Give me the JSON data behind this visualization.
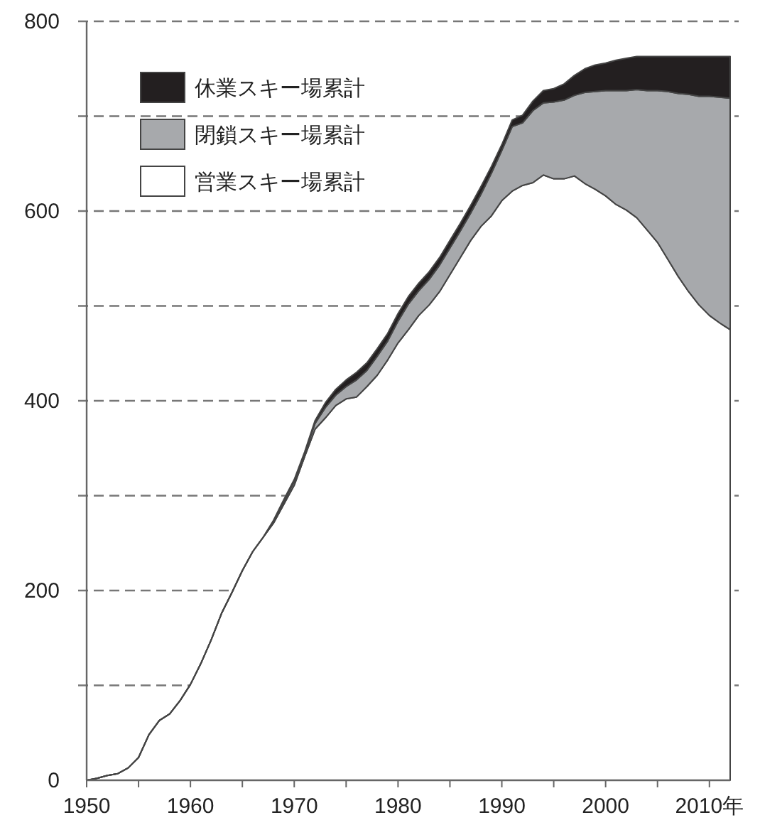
{
  "chart_data": {
    "type": "area",
    "stacked": true,
    "legend": "top left",
    "grid": "y",
    "x": [
      1950,
      1951,
      1952,
      1953,
      1954,
      1955,
      1956,
      1957,
      1958,
      1959,
      1960,
      1961,
      1962,
      1963,
      1964,
      1965,
      1966,
      1967,
      1968,
      1969,
      1970,
      1971,
      1972,
      1973,
      1974,
      1975,
      1976,
      1977,
      1978,
      1979,
      1980,
      1981,
      1982,
      1983,
      1984,
      1985,
      1986,
      1987,
      1988,
      1989,
      1990,
      1991,
      1992,
      1993,
      1994,
      1995,
      1996,
      1997,
      1998,
      1999,
      2000,
      2001,
      2002,
      2003,
      2004,
      2005,
      2006,
      2007,
      2008,
      2009,
      2010,
      2011,
      2012
    ],
    "xlim": [
      1950,
      2012
    ],
    "xticks": [
      1950,
      {
        "value": 1955,
        "label": null
      },
      1960,
      {
        "value": 1965,
        "label": null
      },
      1970,
      {
        "value": 1975,
        "label": null
      },
      1980,
      {
        "value": 1985,
        "label": null
      },
      1990,
      {
        "value": 1995,
        "label": null
      },
      2000,
      {
        "value": 2005,
        "label": null
      },
      {
        "value": 2010,
        "label": "2010年"
      }
    ],
    "ylim": [
      0,
      800
    ],
    "yticks": [
      0,
      {
        "value": 100,
        "label": null
      },
      200,
      {
        "value": 300,
        "label": null
      },
      400,
      {
        "value": 500,
        "label": null
      },
      600,
      {
        "value": 700,
        "label": null
      },
      800
    ],
    "series": [
      {
        "name": "営業スキー場累計",
        "color": "#ffffff",
        "values": [
          0,
          2,
          5,
          7,
          13,
          24,
          48,
          63,
          70,
          84,
          101,
          123,
          148,
          176,
          198,
          221,
          241,
          256,
          271,
          291,
          311,
          341,
          370,
          382,
          395,
          402,
          404,
          415,
          427,
          443,
          461,
          475,
          490,
          501,
          515,
          533,
          551,
          569,
          584,
          595,
          611,
          621,
          627,
          630,
          638,
          634,
          634,
          637,
          629,
          623,
          616,
          607,
          601,
          593,
          580,
          567,
          549,
          531,
          515,
          501,
          490,
          482,
          475
        ]
      },
      {
        "name": "閉鎖スキー場累計",
        "color": "#a7a9ac",
        "values": [
          0,
          0,
          0,
          0,
          0,
          0,
          0,
          0,
          0,
          0,
          0,
          0,
          0,
          0,
          0,
          0,
          0,
          0,
          2,
          3,
          4,
          3,
          6,
          11,
          11,
          13,
          18,
          17,
          20,
          20,
          23,
          27,
          26,
          27,
          28,
          28,
          28,
          29,
          34,
          45,
          53,
          68,
          66,
          76,
          76,
          81,
          83,
          85,
          96,
          103,
          111,
          120,
          126,
          135,
          147,
          160,
          177,
          193,
          208,
          220,
          231,
          238,
          244
        ]
      },
      {
        "name": "休業スキー場累計",
        "color": "#231f20",
        "values": [
          0,
          0,
          0,
          0,
          0,
          0,
          0,
          0,
          0,
          0,
          0,
          0,
          0,
          0,
          0,
          0,
          0,
          0,
          1,
          2,
          2,
          2,
          3,
          5,
          6,
          7,
          8,
          8,
          8,
          8,
          8,
          8,
          8,
          8,
          8,
          8,
          8,
          8,
          8,
          7,
          6,
          7,
          8,
          10,
          13,
          14,
          17,
          21,
          25,
          28,
          29,
          32,
          34,
          35,
          36,
          36,
          37,
          39,
          40,
          42,
          42,
          43,
          44
        ]
      }
    ]
  }
}
